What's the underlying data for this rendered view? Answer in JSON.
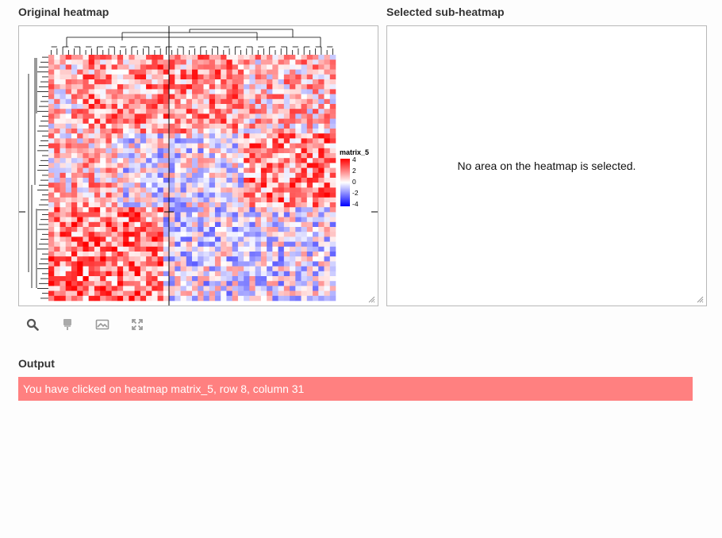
{
  "original": {
    "title": "Original heatmap",
    "legend": {
      "title": "matrix_5",
      "ticks": [
        "4",
        "2",
        "0",
        "-2",
        "-4"
      ]
    },
    "colors": {
      "high": "#ff0000",
      "mid": "#ffffff",
      "low": "#0000ff"
    }
  },
  "selected": {
    "title": "Selected sub-heatmap",
    "empty_message": "No area on the heatmap is selected."
  },
  "toolbar": {
    "icons": [
      "search-icon",
      "brush-icon",
      "image-icon",
      "expand-icon"
    ]
  },
  "output": {
    "title": "Output",
    "message": "You have clicked on heatmap matrix_5, row 8, column 31",
    "color": "#ff8080"
  }
}
